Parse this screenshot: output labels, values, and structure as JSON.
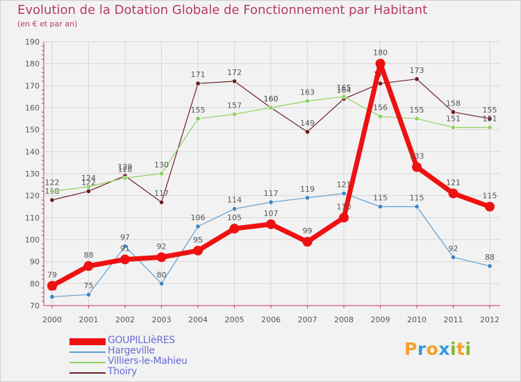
{
  "title": "Evolution de la Dotation Globale de Fonctionnement par Habitant",
  "subtitle": "(en € et par an)",
  "logo": {
    "letters": [
      "P",
      "r",
      "o",
      "x",
      "i",
      "t",
      "i"
    ],
    "colors": [
      "#f3a12c",
      "#3a9ad9",
      "#f3a12c",
      "#3a9ad9",
      "#7dbb2c",
      "#f3a12c",
      "#7dbb2c"
    ]
  },
  "chart_data": {
    "type": "line",
    "title": "Evolution de la Dotation Globale de Fonctionnement par Habitant",
    "ylabel": "(en € et par an)",
    "xlabel": "",
    "categories": [
      "2000",
      "2001",
      "2002",
      "2003",
      "2004",
      "2005",
      "2006",
      "2007",
      "2008",
      "2009",
      "2010",
      "2011",
      "2012"
    ],
    "y_ticks": [
      "70",
      "80",
      "90",
      "100",
      "110",
      "120",
      "130",
      "140",
      "150",
      "160",
      "170",
      "180",
      "190"
    ],
    "ylim": [
      70,
      190
    ],
    "grid": true,
    "legend_position": "bottom-left",
    "series": [
      {
        "name": "Thoiry",
        "color": "#6b1e22",
        "values": [
          118,
          122,
          129,
          117,
          171,
          172,
          160,
          149,
          164,
          171,
          173,
          158,
          155
        ]
      },
      {
        "name": "Villiers-le-Mahieu",
        "color": "#8fd15d",
        "values": [
          122,
          124,
          128,
          130,
          155,
          157,
          160,
          163,
          165,
          156,
          155,
          151,
          151
        ]
      },
      {
        "name": "Hargeville",
        "color": "#5e9fd2",
        "values": [
          74,
          75,
          97,
          80,
          106,
          114,
          117,
          119,
          121,
          115,
          115,
          92,
          88
        ]
      },
      {
        "name": "GOUPILLIèRES",
        "color": "#ee1111",
        "values": [
          79,
          88,
          91,
          92,
          95,
          105,
          107,
          99,
          110,
          180,
          133,
          121,
          115
        ]
      }
    ],
    "legend_order": [
      "GOUPILLIèRES",
      "Hargeville",
      "Villiers-le-Mahieu",
      "Thoiry"
    ]
  }
}
